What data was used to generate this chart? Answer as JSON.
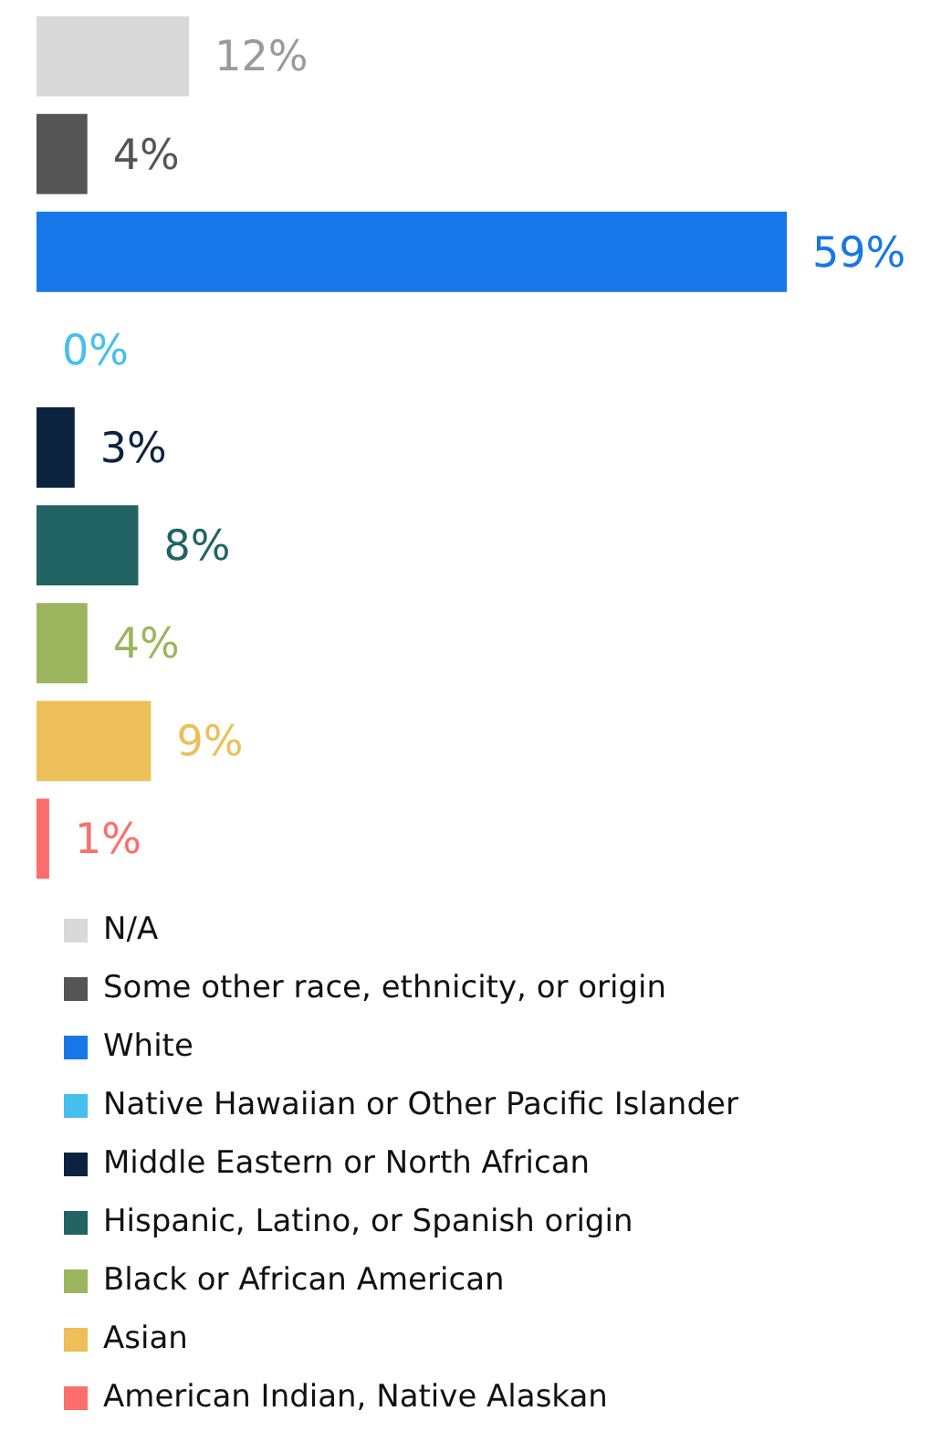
{
  "chart_data": {
    "type": "bar",
    "orientation": "horizontal",
    "categories": [
      null
    ],
    "series": [
      {
        "name": "N/A",
        "color": "#d9d9d9",
        "values": [
          12
        ],
        "value_labels": [
          "12%"
        ]
      },
      {
        "name": "Some other race, ethnicity, or origin",
        "color": "#555555",
        "values": [
          4
        ],
        "value_labels": [
          "4%"
        ]
      },
      {
        "name": "White",
        "color": "#1877e8",
        "values": [
          59
        ],
        "value_labels": [
          "59%"
        ]
      },
      {
        "name": "Native Hawaiian or Other Pacific Islander",
        "color": "#47bfee",
        "values": [
          0
        ],
        "value_labels": [
          "0%"
        ]
      },
      {
        "name": "Middle Eastern or North African",
        "color": "#0c2340",
        "values": [
          3
        ],
        "value_labels": [
          "3%"
        ]
      },
      {
        "name": "Hispanic, Latino, or Spanish origin",
        "color": "#226464",
        "values": [
          8
        ],
        "value_labels": [
          "8%"
        ]
      },
      {
        "name": "Black or African American",
        "color": "#9cb55e",
        "values": [
          4
        ],
        "value_labels": [
          "4%"
        ]
      },
      {
        "name": "Asian",
        "color": "#ecbf5a",
        "values": [
          9
        ],
        "value_labels": [
          "9%"
        ]
      },
      {
        "name": "American Indian, Native Alaskan",
        "color": "#fb6e6e",
        "values": [
          1
        ],
        "value_labels": [
          "1%"
        ]
      }
    ],
    "legend": "bottom"
  }
}
